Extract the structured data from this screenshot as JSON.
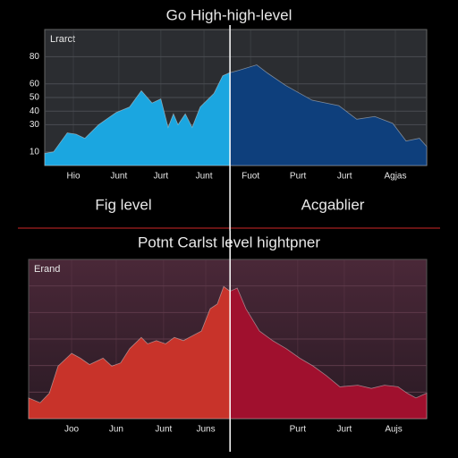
{
  "chart_data": [
    {
      "type": "area",
      "title": "Go High-high-level",
      "legend": "Lrarct",
      "x": [
        0,
        2.3,
        5.9,
        8.2,
        10.5,
        14.1,
        18.7,
        22.2,
        25.3,
        28.1,
        30.4,
        32.3,
        33.7,
        34.9,
        36.8,
        38.6,
        40.7,
        44.3,
        46.6,
        48.2,
        50.8,
        55.5,
        58.3,
        63.0,
        70.0,
        77.0,
        81.7,
        86.4,
        91.1,
        94.6,
        98.1,
        100
      ],
      "values": [
        9,
        10,
        24,
        23,
        20,
        30,
        39,
        43,
        55,
        46,
        49,
        28,
        38,
        30,
        38,
        28,
        43,
        53,
        66,
        68,
        70,
        74,
        68,
        59,
        48,
        44,
        34,
        36,
        31,
        18,
        20,
        14
      ],
      "xlim": [
        0,
        100
      ],
      "ylim": [
        0,
        100
      ],
      "xticks": [
        {
          "value": 7.5,
          "label": "Hio"
        },
        {
          "value": 19.4,
          "label": "Junt"
        },
        {
          "value": 30.4,
          "label": "Jurt"
        },
        {
          "value": 41.7,
          "label": "Junt"
        },
        {
          "value": 53.9,
          "label": "Fuot"
        },
        {
          "value": 66.3,
          "label": "Purt"
        },
        {
          "value": 78.5,
          "label": "Jurt"
        },
        {
          "value": 91.8,
          "label": "Agjas"
        }
      ],
      "yticks": [
        80,
        60,
        50,
        40,
        30,
        10
      ],
      "marker_x": 48.5,
      "colors": [
        "#1ba6e0",
        "#0e3f7c"
      ],
      "grid": true,
      "captions": [
        "Fig level",
        "Acgablier"
      ]
    },
    {
      "type": "area",
      "title": "Potnt Carlst level hightpner",
      "legend": "Erand",
      "x": [
        0,
        2.9,
        5.2,
        7.4,
        10.8,
        13.0,
        15.3,
        18.7,
        20.9,
        23.1,
        25.4,
        28.3,
        29.9,
        32.1,
        34.4,
        36.6,
        38.9,
        41.1,
        43.4,
        45.6,
        47.4,
        49.0,
        50.6,
        52.4,
        54.6,
        58.0,
        61.3,
        64.7,
        68.1,
        71.5,
        74.8,
        78.2,
        82.7,
        86.1,
        89.4,
        92.8,
        95.1,
        97.3,
        100
      ],
      "values": [
        13,
        10,
        16,
        33,
        41,
        38,
        34,
        38,
        33,
        35,
        44,
        51,
        47,
        49,
        47,
        51,
        49,
        52,
        55,
        69,
        72,
        83,
        80,
        82,
        69,
        55,
        49,
        44,
        38,
        33,
        27,
        20,
        21,
        19,
        21,
        20,
        16,
        13,
        16
      ],
      "xlim": [
        0,
        100
      ],
      "ylim": [
        0,
        100
      ],
      "xticks": [
        {
          "value": 10.8,
          "label": "Joo"
        },
        {
          "value": 22.0,
          "label": "Jun"
        },
        {
          "value": 33.9,
          "label": "Junt"
        },
        {
          "value": 44.5,
          "label": "Juns"
        },
        {
          "value": 67.6,
          "label": "Purt"
        },
        {
          "value": 79.3,
          "label": "Jurt"
        },
        {
          "value": 91.7,
          "label": "Aujs"
        }
      ],
      "marker_x": 50.6,
      "colors": [
        "#c8332a",
        "#a0102e"
      ],
      "grid": true
    }
  ]
}
